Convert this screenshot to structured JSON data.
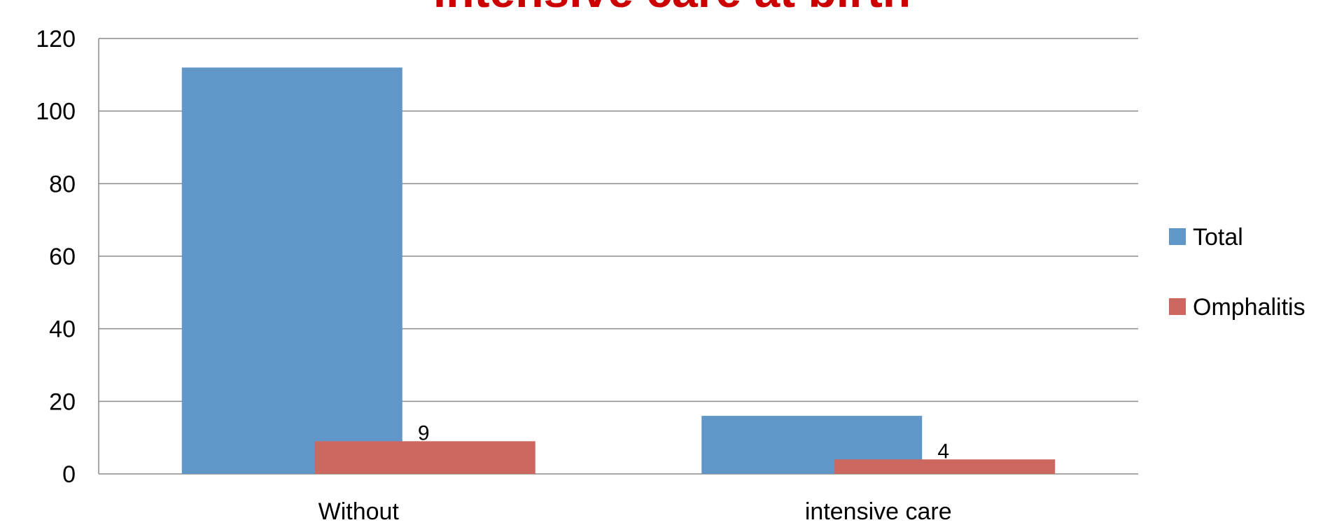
{
  "chart_data": {
    "type": "bar",
    "title": "intensive care at birth",
    "categories": [
      "Without",
      "intensive care"
    ],
    "series": [
      {
        "name": "Total",
        "values": [
          112,
          16
        ],
        "color": "#6196c9"
      },
      {
        "name": "Omphalitis",
        "values": [
          9,
          4
        ],
        "color": "#cd6861"
      }
    ],
    "data_labels": [
      "9",
      "4"
    ],
    "ylim": [
      0,
      120
    ],
    "yticks": [
      0,
      20,
      40,
      60,
      80,
      100,
      120
    ],
    "xlabel": "",
    "ylabel": "",
    "grid": true,
    "legend": "right"
  }
}
